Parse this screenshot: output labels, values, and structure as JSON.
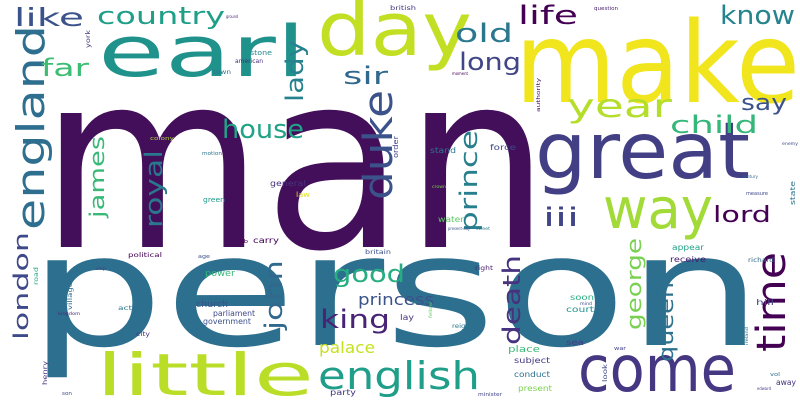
{
  "words": [
    {
      "text": "man",
      "color": "#440f5a"
    },
    {
      "text": "person",
      "color": "#2d6f8e"
    },
    {
      "text": "make",
      "color": "#f1e51d"
    },
    {
      "text": "great",
      "color": "#423f85"
    },
    {
      "text": "day",
      "color": "#c2df23"
    },
    {
      "text": "earl",
      "color": "#20928c"
    },
    {
      "text": "come",
      "color": "#453781"
    },
    {
      "text": "little",
      "color": "#bade28"
    },
    {
      "text": "english",
      "color": "#1f9e89"
    },
    {
      "text": "way",
      "color": "#a2da37"
    },
    {
      "text": "england",
      "color": "#2e6e8e"
    },
    {
      "text": "time",
      "color": "#440154"
    },
    {
      "text": "duke",
      "color": "#3b528b"
    },
    {
      "text": "year",
      "color": "#b5de2b"
    },
    {
      "text": "house",
      "color": "#20a386"
    },
    {
      "text": "country",
      "color": "#1f9f88"
    },
    {
      "text": "life",
      "color": "#440154"
    },
    {
      "text": "know",
      "color": "#25848e"
    },
    {
      "text": "like",
      "color": "#3b528b"
    },
    {
      "text": "lady",
      "color": "#26828e"
    },
    {
      "text": "old",
      "color": "#2a788e"
    },
    {
      "text": "long",
      "color": "#404688"
    },
    {
      "text": "sir",
      "color": "#31688e"
    },
    {
      "text": "far",
      "color": "#3dbc74"
    },
    {
      "text": "say",
      "color": "#3b528b"
    },
    {
      "text": "child",
      "color": "#35b779"
    },
    {
      "text": "prince",
      "color": "#277f8e"
    },
    {
      "text": "royal",
      "color": "#2a788e"
    },
    {
      "text": "james",
      "color": "#38b977"
    },
    {
      "text": "lord",
      "color": "#440154"
    },
    {
      "text": "iii",
      "color": "#414487"
    },
    {
      "text": "good",
      "color": "#26ad81"
    },
    {
      "text": "john",
      "color": "#31688e"
    },
    {
      "text": "king",
      "color": "#482475"
    },
    {
      "text": "death",
      "color": "#46327e"
    },
    {
      "text": "george",
      "color": "#7ad151"
    },
    {
      "text": "queen",
      "color": "#2c728e"
    },
    {
      "text": "london",
      "color": "#3e4989"
    },
    {
      "text": "princess",
      "color": "#3b528b"
    },
    {
      "text": "palace",
      "color": "#c8e020"
    },
    {
      "text": "general",
      "color": "#46337f"
    },
    {
      "text": "stand",
      "color": "#2b758e"
    },
    {
      "text": "force",
      "color": "#3e4989"
    },
    {
      "text": "water",
      "color": "#5ec962"
    },
    {
      "text": "receive",
      "color": "#481b6d"
    },
    {
      "text": "appear",
      "color": "#20a386"
    },
    {
      "text": "richard",
      "color": "#31688e"
    },
    {
      "text": "soon",
      "color": "#29af7f"
    },
    {
      "text": "court",
      "color": "#20938c"
    },
    {
      "text": "sea",
      "color": "#423f85"
    },
    {
      "text": "subject",
      "color": "#443983"
    },
    {
      "text": "place",
      "color": "#3aba76"
    },
    {
      "text": "conduct",
      "color": "#2d708e"
    },
    {
      "text": "present",
      "color": "#7ad151"
    },
    {
      "text": "party",
      "color": "#46337f"
    },
    {
      "text": "power",
      "color": "#35b779"
    },
    {
      "text": "church",
      "color": "#3b528b"
    },
    {
      "text": "parliament",
      "color": "#404688"
    },
    {
      "text": "government",
      "color": "#3b528b"
    },
    {
      "text": "lay",
      "color": "#46337f"
    },
    {
      "text": "carry",
      "color": "#440154"
    },
    {
      "text": "green",
      "color": "#1f9a8a"
    },
    {
      "text": "stone",
      "color": "#24878e"
    },
    {
      "text": "american",
      "color": "#472d7b"
    },
    {
      "text": "town",
      "color": "#2c728e"
    },
    {
      "text": "british",
      "color": "#453781"
    },
    {
      "text": "question",
      "color": "#481f70"
    },
    {
      "text": "hill",
      "color": "#414487"
    },
    {
      "text": "away",
      "color": "#472f7d"
    },
    {
      "text": "state",
      "color": "#2c728e"
    },
    {
      "text": "measure",
      "color": "#3e4989"
    },
    {
      "text": "political",
      "color": "#440154"
    },
    {
      "text": "village",
      "color": "#2e6e8e"
    },
    {
      "text": "kingdom",
      "color": "#482878"
    },
    {
      "text": "act",
      "color": "#2a788e"
    },
    {
      "text": "city",
      "color": "#46337f"
    },
    {
      "text": "henry",
      "color": "#46327e"
    },
    {
      "text": "road",
      "color": "#22a884"
    },
    {
      "text": "britain",
      "color": "#3b528b"
    },
    {
      "text": "law",
      "color": "#dde318"
    },
    {
      "text": "order",
      "color": "#414487"
    },
    {
      "text": "york",
      "color": "#433d84"
    },
    {
      "text": "authority",
      "color": "#471164"
    },
    {
      "text": "colony",
      "color": "#a8db34"
    },
    {
      "text": "motion",
      "color": "#2c728e"
    },
    {
      "text": "reign",
      "color": "#2a788e"
    },
    {
      "text": "right",
      "color": "#481f70"
    },
    {
      "text": "minister",
      "color": "#414487"
    },
    {
      "text": "look",
      "color": "#3e4989"
    },
    {
      "text": "war",
      "color": "#423f85"
    },
    {
      "text": "new",
      "color": "#2c728e"
    },
    {
      "text": "son",
      "color": "#404688"
    },
    {
      "text": "age",
      "color": "#3b528b"
    },
    {
      "text": "lib",
      "color": "#440154"
    },
    {
      "text": "enemy",
      "color": "#3e4989"
    },
    {
      "text": "century",
      "color": "#31688e"
    },
    {
      "text": "street",
      "color": "#2a788e"
    },
    {
      "text": "crown",
      "color": "#7ad151"
    },
    {
      "text": "vol",
      "color": "#2c728e"
    },
    {
      "text": "edward",
      "color": "#433d84"
    },
    {
      "text": "ireland",
      "color": "#2c728e"
    },
    {
      "text": "ship",
      "color": "#414487"
    },
    {
      "text": "moment",
      "color": "#440154"
    },
    {
      "text": "fellow",
      "color": "#5ec962"
    },
    {
      "text": "ground",
      "color": "#481f70"
    },
    {
      "text": "mind",
      "color": "#3e4989"
    },
    {
      "text": "present-day",
      "color": "#3b528b"
    }
  ]
}
